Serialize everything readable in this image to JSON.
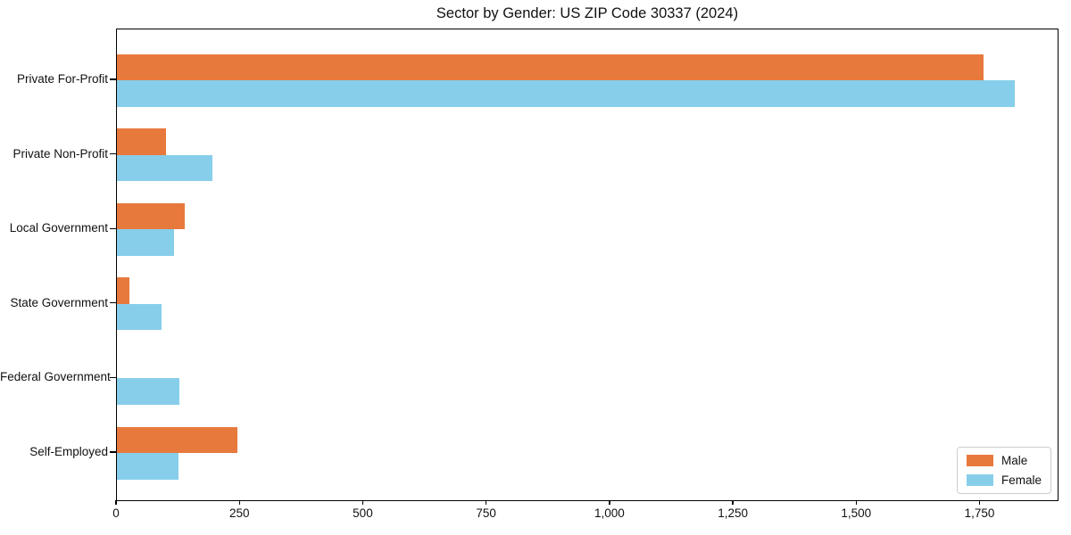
{
  "figure": {
    "title": "Sector by Gender: US ZIP Code 30337 (2024)"
  },
  "chart_data": {
    "type": "bar",
    "orientation": "horizontal",
    "title": "Sector by Gender: US ZIP Code 30337 (2024)",
    "categories": [
      "Private For-Profit",
      "Private Non-Profit",
      "Local Government",
      "State Government",
      "Federal Government",
      "Self-Employed"
    ],
    "series": [
      {
        "name": "Male",
        "color": "#e8793d",
        "values": [
          1757,
          100,
          138,
          25,
          0,
          244
        ]
      },
      {
        "name": "Female",
        "color": "#87ceeb",
        "values": [
          1819,
          194,
          116,
          90,
          127,
          125
        ]
      }
    ],
    "xlabel": "",
    "ylabel": "",
    "xlim": [
      0,
      1910
    ],
    "xticks": [
      0,
      250,
      500,
      750,
      1000,
      1250,
      1500,
      1750
    ],
    "xtick_labels": [
      "0",
      "250",
      "500",
      "750",
      "1,000",
      "1,250",
      "1,500",
      "1,750"
    ],
    "grid": false,
    "legend_position": "lower right"
  }
}
